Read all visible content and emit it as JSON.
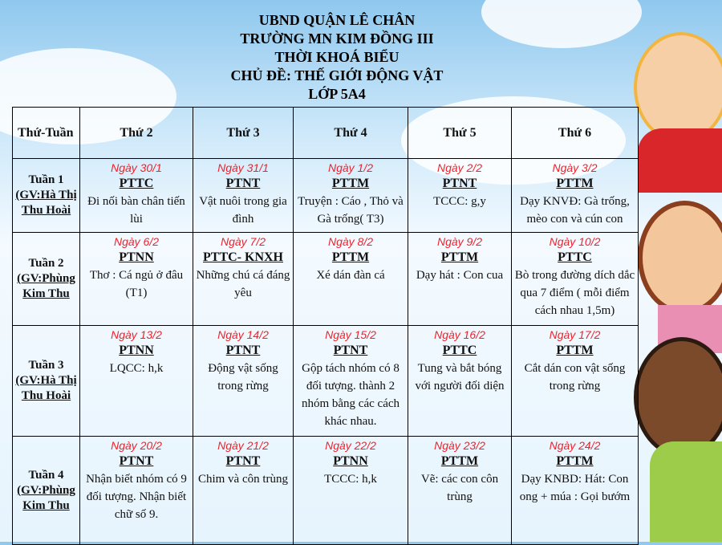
{
  "header": {
    "line1": "UBND QUẬN LÊ CHÂN",
    "line2": "TRƯỜNG MN KIM ĐỒNG III",
    "line3": "THỜI KHOÁ BIỂU",
    "line4": "CHỦ ĐỀ: THẾ GIỚI ĐỘNG VẬT",
    "line5": "LỚP 5A4"
  },
  "table": {
    "corner": "Thứ-Tuần",
    "days": [
      "Thứ 2",
      "Thứ 3",
      "Thứ 4",
      "Thứ 5",
      "Thứ 6"
    ],
    "weeks": [
      {
        "label": "Tuần 1",
        "teacher": "(GV:Hà Thị Thu Hoài",
        "cells": [
          {
            "date": "Ngày 30/1",
            "subject": "PTTC",
            "content": "Đi nối bàn chân tiến lùi"
          },
          {
            "date": "Ngày 31/1",
            "subject": "PTNT",
            "content": "Vật nuôi trong gia đình"
          },
          {
            "date": "Ngày 1/2",
            "subject": "PTTM",
            "content": "Truyện : Cáo , Thỏ và Gà trống( T3)"
          },
          {
            "date": "Ngày 2/2",
            "subject": "PTNT",
            "content": "TCCC: g,y"
          },
          {
            "date": "Ngày 3/2",
            "subject": "PTTM",
            "content": "Dạy KNVĐ: Gà trống, mèo con và cún con"
          }
        ]
      },
      {
        "label": "Tuần 2",
        "teacher": "(GV:Phùng Kim Thu",
        "cells": [
          {
            "date": "Ngày 6/2",
            "subject": "PTNN",
            "content": "Thơ : Cá ngủ ở đâu (T1)"
          },
          {
            "date": "Ngày 7/2",
            "subject": "PTTC- KNXH",
            "content": "Những chú cá đáng yêu"
          },
          {
            "date": "Ngày 8/2",
            "subject": "PTTM",
            "content": "Xé dán đàn cá"
          },
          {
            "date": "Ngày 9/2",
            "subject": "PTTM",
            "content": "Dạy hát : Con cua"
          },
          {
            "date": "Ngày 10/2",
            "subject": "PTTC",
            "content": "Bò trong đường dích dắc qua 7 điểm ( mỗi điểm cách nhau 1,5m)"
          }
        ]
      },
      {
        "label": "Tuần 3",
        "teacher": "(GV:Hà Thị Thu Hoài",
        "cells": [
          {
            "date": "Ngày 13/2",
            "subject": "PTNN",
            "content": "LQCC: h,k"
          },
          {
            "date": "Ngày 14/2",
            "subject": "PTNT",
            "content": "Động vật sống trong rừng"
          },
          {
            "date": "Ngày 15/2",
            "subject": "PTNT",
            "content": "Gộp tách nhóm có 8 đối tượng. thành 2 nhóm bằng các cách khác nhau."
          },
          {
            "date": "Ngày 16/2",
            "subject": "PTTC",
            "content": "Tung và bắt bóng với người đối diện"
          },
          {
            "date": "Ngày 17/2",
            "subject": "PTTM",
            "content": "Cắt dán con vật sống trong rừng"
          }
        ]
      },
      {
        "label": "Tuần 4",
        "teacher": "(GV:Phùng Kim Thu",
        "cells": [
          {
            "date": "Ngày 20/2",
            "subject": "PTNT",
            "content": "Nhận biết nhóm có 9 đối tượng. Nhận biết chữ số 9."
          },
          {
            "date": "Ngày 21/2",
            "subject": "PTNT",
            "content": "Chim và côn trùng"
          },
          {
            "date": "Ngày 22/2",
            "subject": "PTNN",
            "content": "TCCC: h,k"
          },
          {
            "date": "Ngày 23/2",
            "subject": "PTTM",
            "content": "Vẽ: các con côn trùng"
          },
          {
            "date": "Ngày 24/2",
            "subject": "PTTM",
            "content": "Dạy KNBD: Hát: Con ong + múa : Gọi bướm"
          }
        ]
      }
    ]
  },
  "colors": {
    "date": "#f2202a",
    "sky": "#8fc8ee"
  }
}
